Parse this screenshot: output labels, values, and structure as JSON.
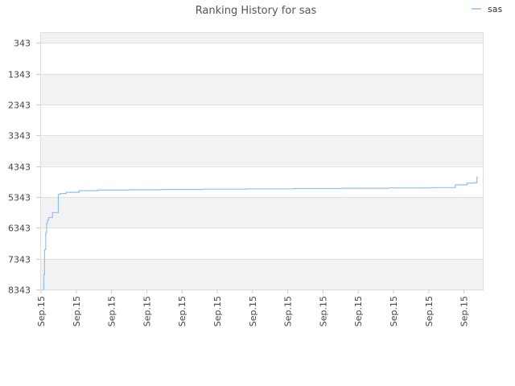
{
  "chart_data": {
    "type": "line",
    "title": "Ranking History for sas",
    "xlabel": "",
    "ylabel": "",
    "y_inverted": true,
    "ylim": [
      8343,
      0
    ],
    "y_ticks": [
      343,
      1343,
      2343,
      3343,
      4343,
      5343,
      6343,
      7343,
      8343
    ],
    "y_tick_labels": [
      "343",
      "1343",
      "2343",
      "3343",
      "4343",
      "5343",
      "6343",
      "7343",
      "8343"
    ],
    "x_tick_labels": [
      "Sep.15",
      "Sep.15",
      "Sep.15",
      "Sep.15",
      "Sep.15",
      "Sep.15",
      "Sep.15",
      "Sep.15",
      "Sep.15",
      "Sep.15",
      "Sep.15",
      "Sep.15",
      "Sep.15"
    ],
    "grid": true,
    "legend_position": "top-right",
    "series": [
      {
        "name": "sas",
        "color": "#90c0f0",
        "x": [
          0,
          0.3,
          0.5,
          0.8,
          1.0,
          1.2,
          1.5,
          2.5,
          4,
          4.5,
          6,
          9.3,
          14,
          22,
          30,
          41,
          52,
          64,
          76,
          88,
          99,
          105,
          108,
          110,
          110.5
        ],
        "y": [
          8343,
          7850,
          7050,
          6500,
          6200,
          6100,
          6010,
          5850,
          5260,
          5230,
          5190,
          5140,
          5120,
          5110,
          5100,
          5090,
          5080,
          5070,
          5060,
          5050,
          5040,
          4950,
          4890,
          4880,
          4680
        ]
      }
    ]
  }
}
